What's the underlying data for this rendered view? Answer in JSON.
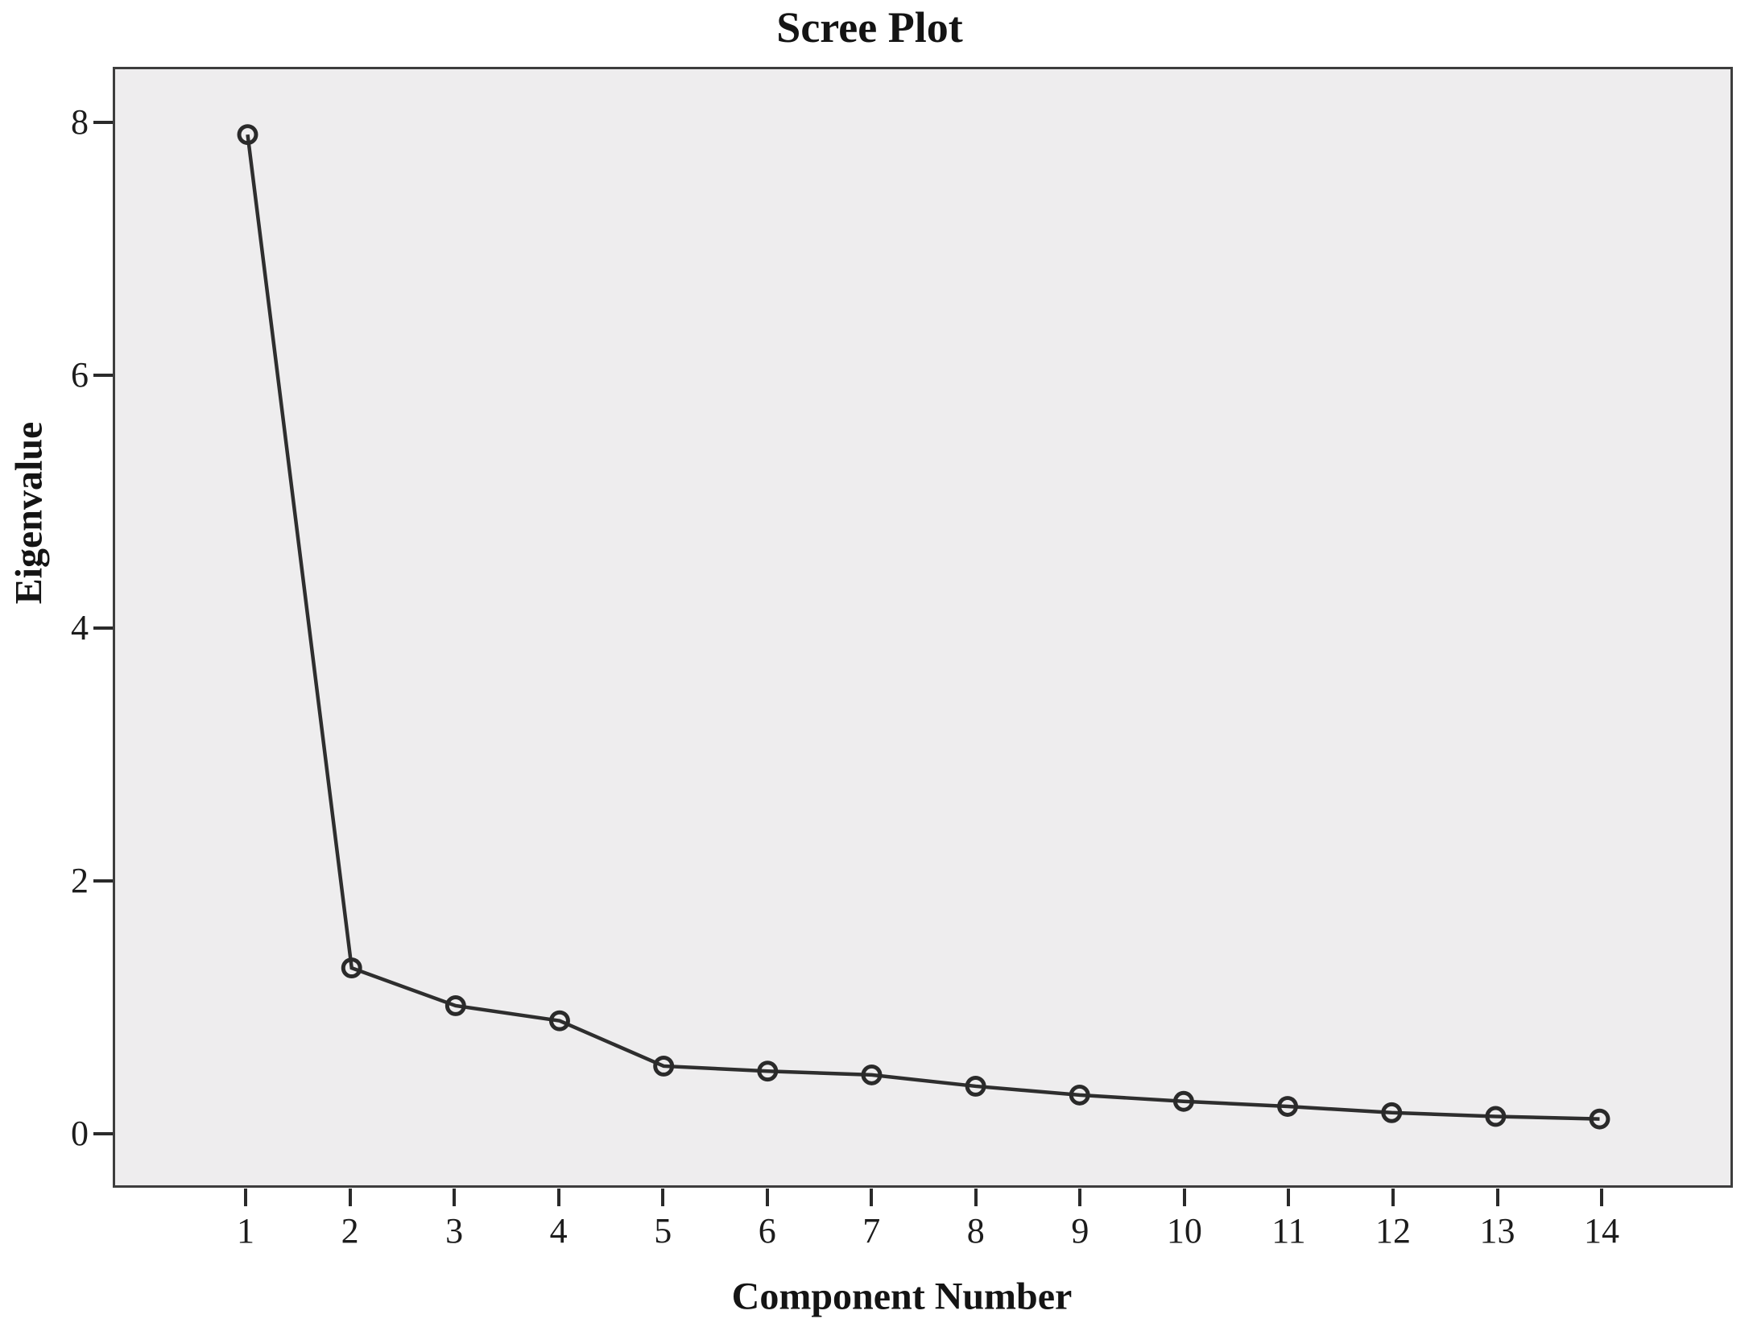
{
  "title": "Scree Plot",
  "chart_data": {
    "type": "line",
    "title": "Scree Plot",
    "xlabel": "Component Number",
    "ylabel": "Eigenvalue",
    "x": [
      1,
      2,
      3,
      4,
      5,
      6,
      7,
      8,
      9,
      10,
      11,
      12,
      13,
      14
    ],
    "series": [
      {
        "name": "Eigenvalue",
        "values": [
          7.92,
          1.3,
          1.0,
          0.88,
          0.52,
          0.48,
          0.45,
          0.36,
          0.29,
          0.24,
          0.2,
          0.15,
          0.12,
          0.1
        ]
      }
    ],
    "x_ticks": [
      1,
      2,
      3,
      4,
      5,
      6,
      7,
      8,
      9,
      10,
      11,
      12,
      13,
      14
    ],
    "y_ticks": [
      0,
      2,
      4,
      6,
      8
    ],
    "x_range": [
      -0.274,
      15.258
    ],
    "y_range": [
      -0.427,
      8.439
    ],
    "grid": false,
    "legend_position": "none",
    "marker": "open-circle",
    "colors": {
      "line": "#2e2e2e",
      "marker_stroke": "#2a2a2a",
      "plot_background": "#eeedee",
      "plot_border": "#3d3d3d",
      "text": "#141414",
      "page_background": "#ffffff"
    }
  }
}
